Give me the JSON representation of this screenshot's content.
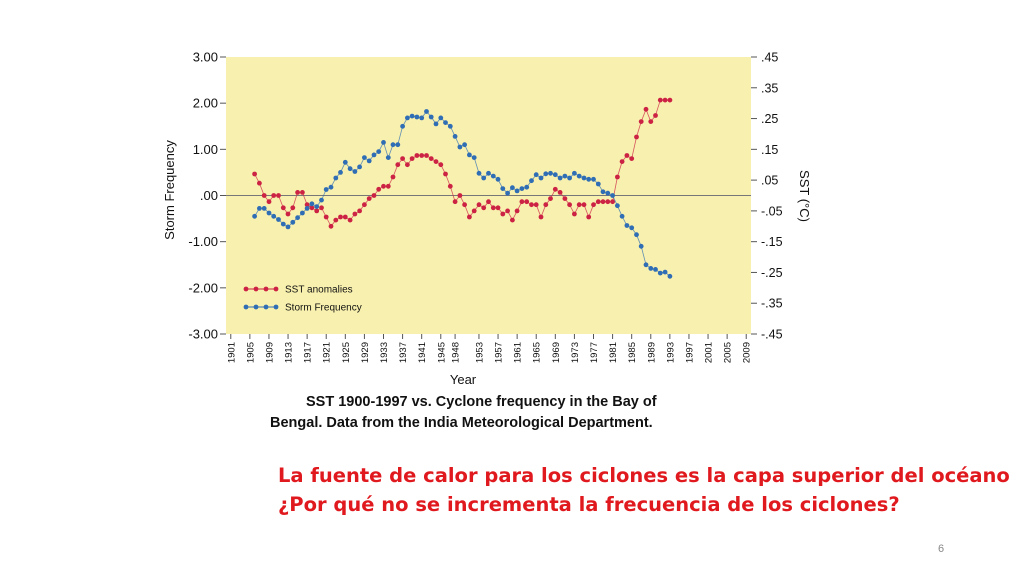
{
  "chart_data": {
    "type": "line",
    "xlabel": "Year",
    "ylabel_left": "Storm Frequency",
    "ylabel_right": "SST (°C)",
    "x_ticks": [
      1901,
      1905,
      1909,
      1913,
      1917,
      1921,
      1925,
      1929,
      1933,
      1937,
      1941,
      1945,
      1948,
      1953,
      1957,
      1961,
      1965,
      1969,
      1973,
      1977,
      1981,
      1985,
      1989,
      1993,
      1997,
      2001,
      2005,
      2009
    ],
    "xlim": [
      1900,
      2010
    ],
    "y_left_ticks": [
      "3.00",
      "2.00",
      "1.00",
      ".00",
      "-1.00",
      "-2.00",
      "-3.00"
    ],
    "y_left_range": [
      -3,
      3
    ],
    "y_right_ticks": [
      ".45",
      ".35",
      ".25",
      ".15",
      ".05",
      "-.05",
      "-.15",
      "-.25",
      "-.35",
      "-.45"
    ],
    "y_right_range": [
      -0.45,
      0.45
    ],
    "legend": [
      {
        "label": "SST  anomalies",
        "color": "#cc2244"
      },
      {
        "label": "Storm Frequency",
        "color": "#2f6db5"
      }
    ],
    "legend_position": "bottom-left",
    "series": [
      {
        "name": "SST  anomalies",
        "axis": "right",
        "color": "#cc2244",
        "x": [
          1906,
          1907,
          1908,
          1909,
          1910,
          1911,
          1912,
          1913,
          1914,
          1915,
          1916,
          1917,
          1918,
          1919,
          1920,
          1921,
          1922,
          1923,
          1924,
          1925,
          1926,
          1927,
          1928,
          1929,
          1930,
          1931,
          1932,
          1933,
          1934,
          1935,
          1936,
          1937,
          1938,
          1939,
          1940,
          1941,
          1942,
          1943,
          1944,
          1945,
          1946,
          1947,
          1948,
          1949,
          1950,
          1951,
          1952,
          1953,
          1954,
          1955,
          1956,
          1957,
          1958,
          1959,
          1960,
          1961,
          1962,
          1963,
          1964,
          1965,
          1966,
          1967,
          1968,
          1969,
          1970,
          1971,
          1972,
          1973,
          1974,
          1975,
          1976,
          1977,
          1978,
          1979,
          1980,
          1981,
          1982,
          1983,
          1984,
          1985,
          1986,
          1987,
          1988,
          1989,
          1990,
          1991,
          1992,
          1993
        ],
        "values": [
          0.07,
          0.04,
          0.0,
          -0.02,
          0.0,
          0.0,
          -0.04,
          -0.06,
          -0.04,
          0.01,
          0.01,
          -0.03,
          -0.04,
          -0.05,
          -0.04,
          -0.07,
          -0.1,
          -0.08,
          -0.07,
          -0.07,
          -0.08,
          -0.06,
          -0.05,
          -0.03,
          -0.01,
          0.0,
          0.02,
          0.03,
          0.03,
          0.06,
          0.1,
          0.12,
          0.1,
          0.12,
          0.13,
          0.13,
          0.13,
          0.12,
          0.11,
          0.1,
          0.07,
          0.03,
          -0.02,
          0.0,
          -0.03,
          -0.07,
          -0.05,
          -0.03,
          -0.04,
          -0.02,
          -0.04,
          -0.04,
          -0.06,
          -0.05,
          -0.08,
          -0.05,
          -0.02,
          -0.02,
          -0.03,
          -0.03,
          -0.07,
          -0.03,
          -0.01,
          0.02,
          0.01,
          -0.01,
          -0.03,
          -0.06,
          -0.03,
          -0.03,
          -0.07,
          -0.03,
          -0.02,
          -0.02,
          -0.02,
          -0.02,
          0.06,
          0.11,
          0.13,
          0.12,
          0.19,
          0.24,
          0.28,
          0.24,
          0.26,
          0.31,
          0.31,
          0.31
        ]
      },
      {
        "name": "Storm Frequency",
        "axis": "left",
        "color": "#2f6db5",
        "x": [
          1906,
          1907,
          1908,
          1909,
          1910,
          1911,
          1912,
          1913,
          1914,
          1915,
          1916,
          1917,
          1918,
          1919,
          1920,
          1921,
          1922,
          1923,
          1924,
          1925,
          1926,
          1927,
          1928,
          1929,
          1930,
          1931,
          1932,
          1933,
          1934,
          1935,
          1936,
          1937,
          1938,
          1939,
          1940,
          1941,
          1942,
          1943,
          1944,
          1945,
          1946,
          1947,
          1948,
          1949,
          1950,
          1951,
          1952,
          1953,
          1954,
          1955,
          1956,
          1957,
          1958,
          1959,
          1960,
          1961,
          1962,
          1963,
          1964,
          1965,
          1966,
          1967,
          1968,
          1969,
          1970,
          1971,
          1972,
          1973,
          1974,
          1975,
          1976,
          1977,
          1978,
          1979,
          1980,
          1981,
          1982,
          1983,
          1984,
          1985,
          1986,
          1987,
          1988,
          1989,
          1990,
          1991,
          1992,
          1993
        ],
        "values": [
          -0.45,
          -0.28,
          -0.28,
          -0.38,
          -0.45,
          -0.52,
          -0.62,
          -0.68,
          -0.58,
          -0.48,
          -0.38,
          -0.28,
          -0.18,
          -0.24,
          -0.1,
          0.13,
          0.18,
          0.38,
          0.5,
          0.72,
          0.58,
          0.52,
          0.62,
          0.82,
          0.75,
          0.88,
          0.95,
          1.15,
          0.82,
          1.1,
          1.1,
          1.5,
          1.68,
          1.72,
          1.7,
          1.68,
          1.82,
          1.7,
          1.55,
          1.68,
          1.58,
          1.5,
          1.28,
          1.05,
          1.1,
          0.88,
          0.82,
          0.48,
          0.38,
          0.48,
          0.42,
          0.35,
          0.15,
          0.05,
          0.17,
          0.1,
          0.15,
          0.18,
          0.32,
          0.45,
          0.38,
          0.47,
          0.48,
          0.45,
          0.38,
          0.42,
          0.38,
          0.48,
          0.42,
          0.38,
          0.35,
          0.35,
          0.25,
          0.08,
          0.05,
          0.0,
          -0.22,
          -0.45,
          -0.65,
          -0.7,
          -0.85,
          -1.1,
          -1.5,
          -1.58,
          -1.6,
          -1.68,
          -1.66,
          -1.75
        ]
      }
    ]
  },
  "caption": {
    "line1": "SST 1900-1997 vs. Cyclone frequency in the Bay of",
    "line2": "Bengal.  Data from the India  Meteorological Department."
  },
  "slide_text": {
    "line1": "La fuente de calor para los ciclones es la capa superior del océano",
    "line2": "¿Por qué no se incrementa la frecuencia de los ciclones?"
  },
  "page_number": "6",
  "colors": {
    "plot_background": "#f8f0ae",
    "sst": "#cc2244",
    "storm": "#2f6db5",
    "red_text": "#e0191e"
  }
}
